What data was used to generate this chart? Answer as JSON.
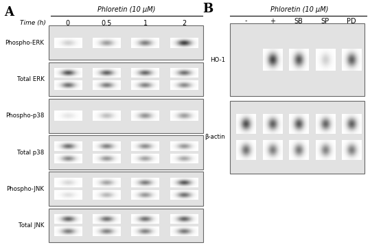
{
  "panel_A_title": "Phloretin (10 μM)",
  "panel_B_title": "Phloretin (10 μM)",
  "panel_A_label": "A",
  "panel_B_label": "B",
  "time_label": "Time (h)",
  "time_points": [
    "0",
    "0.5",
    "1",
    "2"
  ],
  "panel_B_conditions": [
    "-",
    "+",
    "SB",
    "SP",
    "PD"
  ],
  "panel_A_rows": [
    "Phospho-ERK",
    "Total ERK",
    "Phospho-p38",
    "Total p38",
    "Phospho-JNK",
    "Total JNK"
  ],
  "panel_B_rows": [
    "HO-1",
    "β-actin"
  ],
  "figsize": [
    5.39,
    3.57
  ],
  "dpi": 100,
  "panel_A_bands": {
    "Phospho-ERK": {
      "n_bands": 1,
      "intensities": [
        0.18,
        0.38,
        0.5,
        0.75
      ]
    },
    "Total ERK": {
      "n_bands": 2,
      "intensities": [
        0.65,
        0.6,
        0.58,
        0.55
      ],
      "intensities2": [
        0.55,
        0.5,
        0.48,
        0.45
      ]
    },
    "Phospho-p38": {
      "n_bands": 1,
      "intensities": [
        0.1,
        0.25,
        0.42,
        0.38
      ]
    },
    "Total p38": {
      "n_bands": 2,
      "intensities": [
        0.55,
        0.48,
        0.44,
        0.4
      ],
      "intensities2": [
        0.45,
        0.4,
        0.36,
        0.34
      ]
    },
    "Phospho-JNK": {
      "n_bands": 2,
      "intensities": [
        0.15,
        0.35,
        0.5,
        0.65
      ],
      "intensities2": [
        0.12,
        0.28,
        0.4,
        0.55
      ]
    },
    "Total JNK": {
      "n_bands": 2,
      "intensities": [
        0.6,
        0.55,
        0.55,
        0.6
      ],
      "intensities2": [
        0.5,
        0.48,
        0.48,
        0.52
      ]
    }
  },
  "panel_B_bands": {
    "HO-1": {
      "n_bands": 1,
      "intensities": [
        0.0,
        0.72,
        0.65,
        0.18,
        0.62
      ]
    },
    "beta-actin": {
      "n_bands": 2,
      "intensities": [
        0.68,
        0.62,
        0.65,
        0.6,
        0.62
      ],
      "intensities2": [
        0.55,
        0.5,
        0.52,
        0.48,
        0.5
      ]
    }
  },
  "bg_light": "#f0f0f0",
  "bg_box": "#e2e2e2",
  "border_color": "#666666"
}
